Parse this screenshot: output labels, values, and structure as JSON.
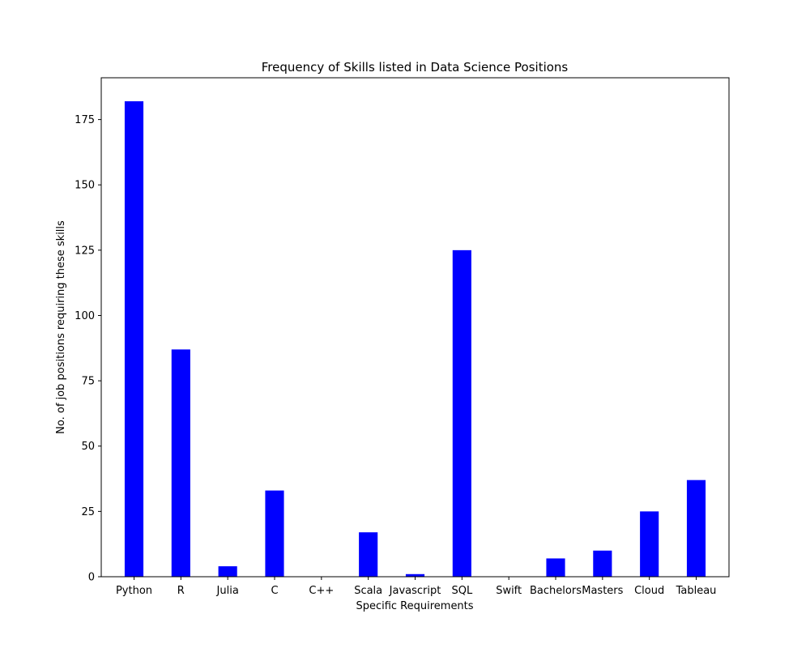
{
  "chart_data": {
    "type": "bar",
    "title": "Frequency of Skills listed in Data Science Positions",
    "xlabel": "Specific Requirements",
    "ylabel": "No. of job positions requiring these skills",
    "categories": [
      "Python",
      "R",
      "Julia",
      "C",
      "C++",
      "Scala",
      "Javascript",
      "SQL",
      "Swift",
      "Bachelors",
      "Masters",
      "Cloud",
      "Tableau"
    ],
    "values": [
      182,
      87,
      4,
      33,
      0,
      17,
      1,
      125,
      0,
      7,
      10,
      25,
      37
    ],
    "ylim": [
      0,
      191
    ],
    "yticks": [
      0,
      25,
      50,
      75,
      100,
      125,
      150,
      175
    ],
    "grid": false,
    "bar_color": "#0000ff"
  }
}
